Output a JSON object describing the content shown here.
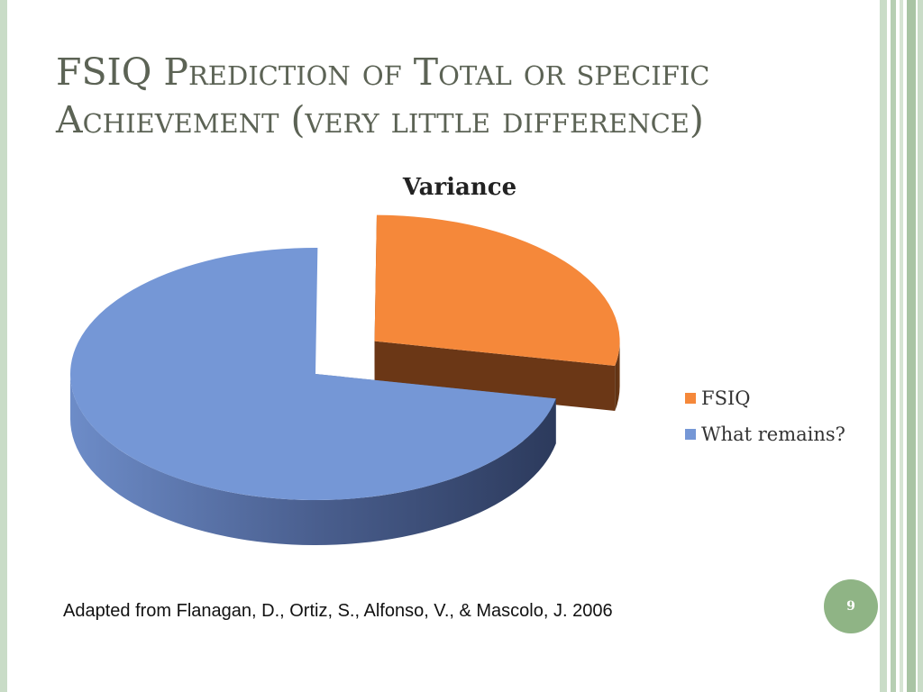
{
  "slide": {
    "title": "FSIQ Prediction of Total or specific Achievement (very little difference)",
    "citation": "Adapted from Flanagan, D., Ortiz, S., Alfonso, V., & Mascolo, J. 2006",
    "page_number": "9",
    "accent_color": "#8fb485"
  },
  "chart_data": {
    "type": "pie",
    "title": "Variance",
    "categories": [
      "FSIQ",
      "What remains?"
    ],
    "values": [
      28,
      72
    ],
    "colors": [
      "#f5883a",
      "#7597d6"
    ],
    "exploded": [
      "FSIQ"
    ],
    "legend_position": "right",
    "three_d": true
  }
}
